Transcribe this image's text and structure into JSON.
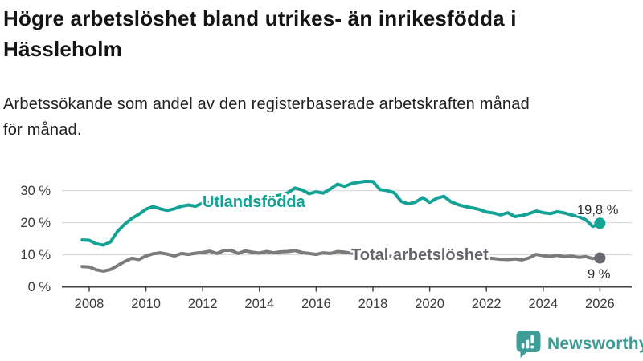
{
  "header": {
    "title": "Högre arbetslöshet bland utrikes- än inrikesfödda i\nHässleholm",
    "subtitle": "Arbetssökande som andel av den registerbaserade arbetskraften månad\nför månad."
  },
  "footer": {
    "brand": "Newsworthy"
  },
  "colors": {
    "series_teal": "#15a296",
    "series_gray": "#7b7b7e",
    "dot_gray": "#68686e",
    "grid": "#dcdcdc",
    "axis": "#404040",
    "logo_teal": "#3f9c97"
  },
  "chart_data": {
    "type": "line",
    "title": "Högre arbetslöshet bland utrikes- än inrikesfödda i Hässleholm",
    "subtitle": "Arbetssökande som andel av den registerbaserade arbetskraften månad för månad.",
    "xlabel": "",
    "ylabel": "",
    "grid": true,
    "ylim": [
      0,
      34
    ],
    "x_start": 2007.75,
    "x_step": 0.25,
    "x_ticks": [
      2008,
      2010,
      2012,
      2014,
      2016,
      2018,
      2020,
      2022,
      2024,
      2026
    ],
    "y_ticks": [
      {
        "value": 0,
        "label": "0 %"
      },
      {
        "value": 10,
        "label": "10 %"
      },
      {
        "value": 20,
        "label": "20 %"
      },
      {
        "value": 30,
        "label": "30 %"
      }
    ],
    "series": [
      {
        "name": "Utlandsfödda",
        "color": "#15a296",
        "dot_color": "#15a296",
        "end_label": "19,8 %",
        "end_value": 19.8,
        "values": [
          14.6,
          14.5,
          13.4,
          13.0,
          14.0,
          17.3,
          19.5,
          21.3,
          22.6,
          24.2,
          25.0,
          24.3,
          23.8,
          24.3,
          25.1,
          25.5,
          25.1,
          26.1,
          26.4,
          25.4,
          26.0,
          26.6,
          26.9,
          27.4,
          27.1,
          27.6,
          27.9,
          28.2,
          28.6,
          29.3,
          30.8,
          30.2,
          29.0,
          29.6,
          29.2,
          30.5,
          32.0,
          31.3,
          32.2,
          32.6,
          32.9,
          32.8,
          30.3,
          30.0,
          29.3,
          26.6,
          25.8,
          26.4,
          27.8,
          26.3,
          27.6,
          28.2,
          26.5,
          25.6,
          25.0,
          24.6,
          24.1,
          23.3,
          23.0,
          22.4,
          23.1,
          21.9,
          22.2,
          22.8,
          23.6,
          23.1,
          22.8,
          23.4,
          23.0,
          22.4,
          21.9,
          20.9,
          18.8,
          19.8
        ]
      },
      {
        "name": "Total arbetslöshet",
        "color": "#7b7b7e",
        "dot_color": "#68686e",
        "end_label": "9 %",
        "end_value": 9.0,
        "values": [
          6.3,
          6.2,
          5.3,
          4.9,
          5.4,
          6.6,
          7.9,
          8.9,
          8.5,
          9.6,
          10.3,
          10.6,
          10.2,
          9.6,
          10.4,
          10.1,
          10.5,
          10.7,
          11.1,
          10.4,
          11.3,
          11.4,
          10.4,
          11.2,
          10.8,
          10.5,
          11.0,
          10.6,
          10.9,
          11.0,
          11.3,
          10.7,
          10.4,
          10.1,
          10.6,
          10.4,
          11.0,
          10.8,
          10.5,
          10.3,
          10.1,
          10.0,
          9.8,
          9.6,
          9.4,
          9.3,
          9.2,
          9.4,
          9.6,
          10.0,
          10.4,
          10.5,
          10.3,
          10.1,
          9.8,
          9.5,
          9.2,
          9.0,
          8.8,
          8.6,
          8.5,
          8.7,
          8.4,
          9.0,
          10.1,
          9.7,
          9.5,
          9.8,
          9.4,
          9.6,
          9.2,
          9.4,
          8.8,
          9.0
        ]
      }
    ]
  }
}
